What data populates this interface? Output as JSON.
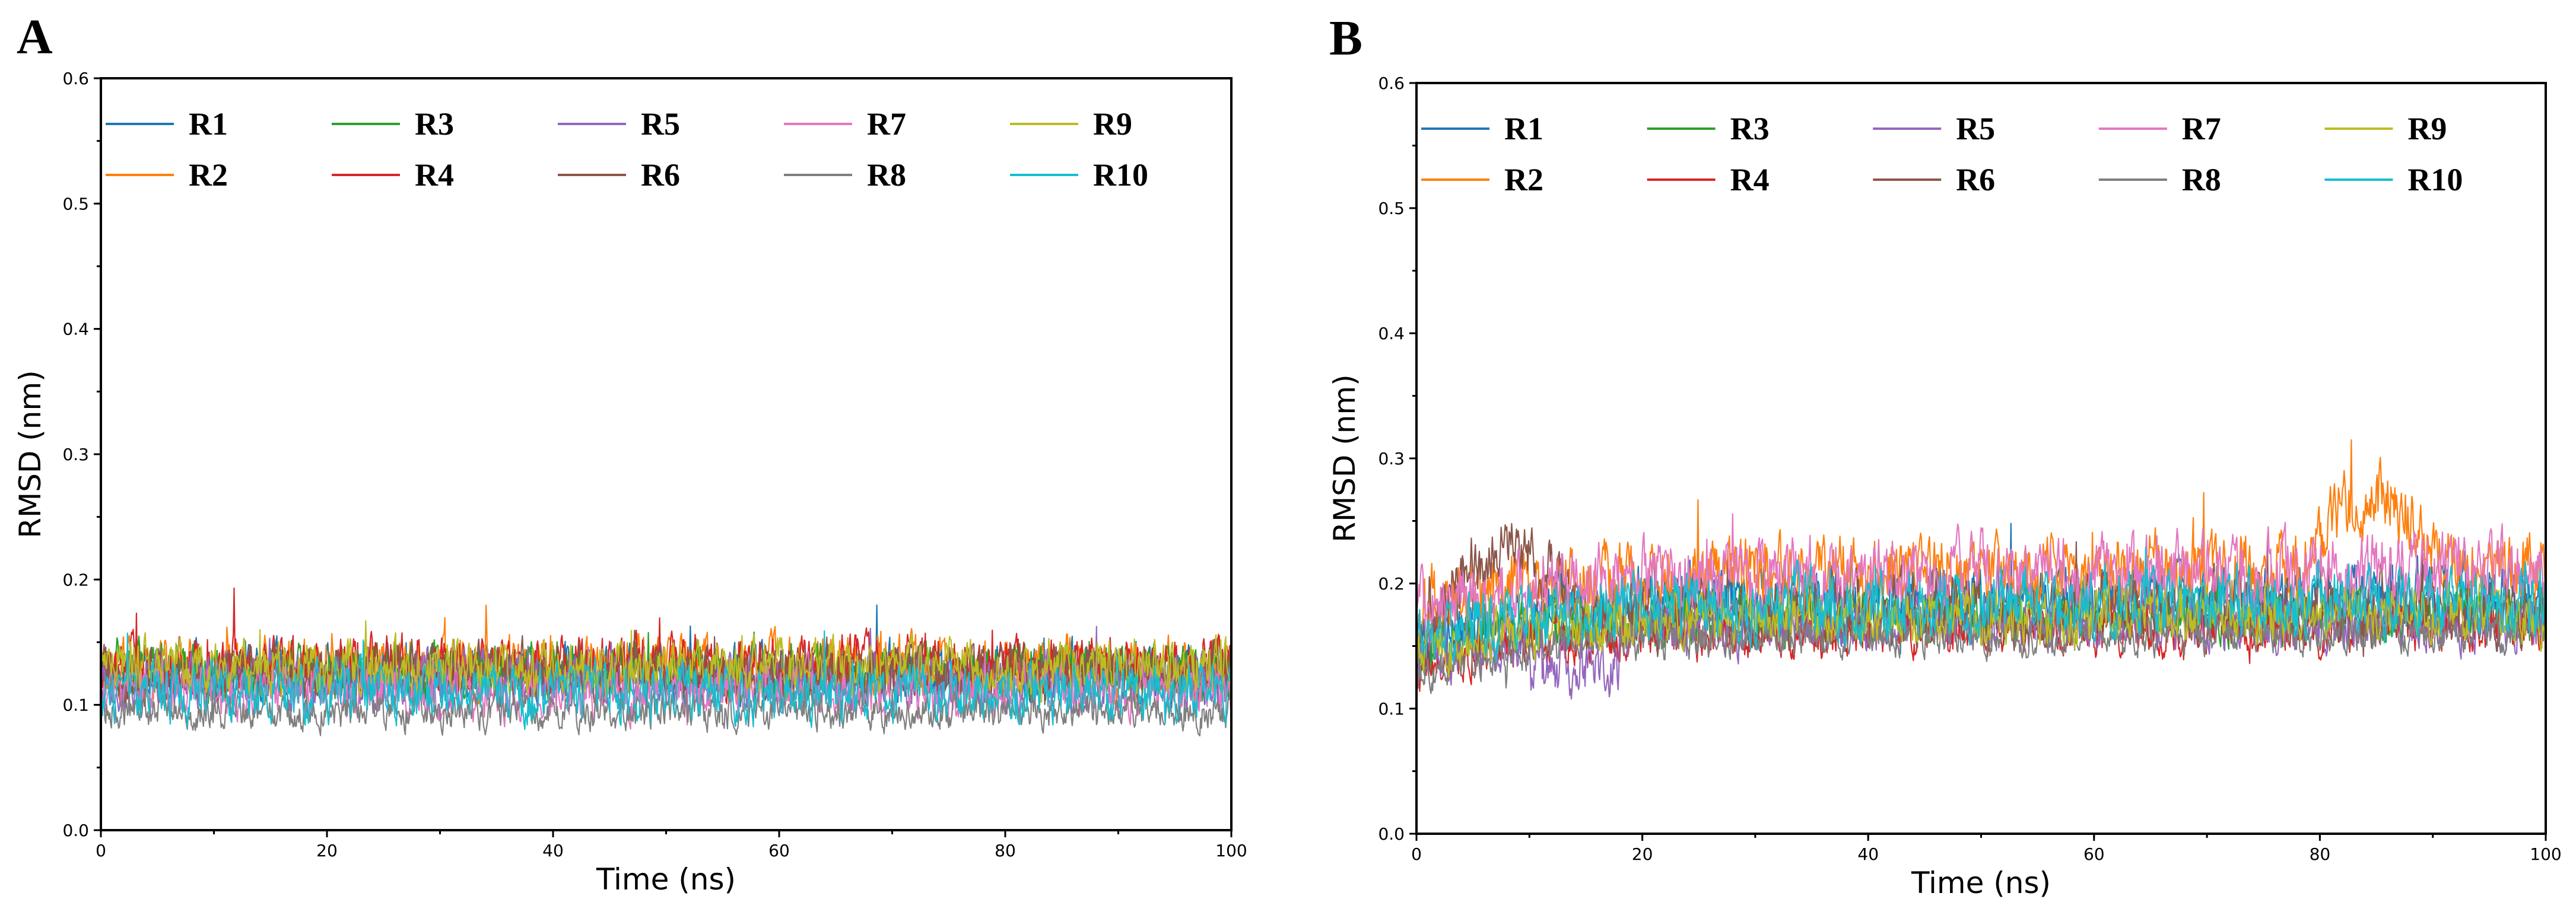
{
  "chart_data": [
    {
      "panel": "A",
      "type": "line",
      "xlabel": "Time (ns)",
      "ylabel": "RMSD (nm)",
      "xlim": [
        0,
        100
      ],
      "ylim": [
        0.0,
        0.6
      ],
      "xticks": [
        "0",
        "20",
        "40",
        "60",
        "80",
        "100"
      ],
      "yticks": [
        "0.0",
        "0.1",
        "0.2",
        "0.3",
        "0.4",
        "0.5",
        "0.6"
      ],
      "legend_position": "top",
      "series": [
        {
          "name": "R1",
          "color": "#1f77b4",
          "mean": 0.125,
          "noise": 0.017
        },
        {
          "name": "R2",
          "color": "#ff7f0e",
          "mean": 0.13,
          "noise": 0.018
        },
        {
          "name": "R3",
          "color": "#2ca02c",
          "mean": 0.128,
          "noise": 0.017
        },
        {
          "name": "R4",
          "color": "#d62728",
          "mean": 0.132,
          "noise": 0.017
        },
        {
          "name": "R5",
          "color": "#9467bd",
          "mean": 0.12,
          "noise": 0.016
        },
        {
          "name": "R6",
          "color": "#8c564b",
          "mean": 0.125,
          "noise": 0.017
        },
        {
          "name": "R7",
          "color": "#e377c2",
          "mean": 0.11,
          "noise": 0.016
        },
        {
          "name": "R8",
          "color": "#7f7f7f",
          "mean": 0.095,
          "noise": 0.011
        },
        {
          "name": "R9",
          "color": "#bcbd22",
          "mean": 0.13,
          "noise": 0.016
        },
        {
          "name": "R10",
          "color": "#17becf",
          "mean": 0.11,
          "noise": 0.017
        }
      ]
    },
    {
      "panel": "B",
      "type": "line",
      "xlabel": "Time (ns)",
      "ylabel": "RMSD (nm)",
      "xlim": [
        0,
        100
      ],
      "ylim": [
        0.0,
        0.6
      ],
      "xticks": [
        "0",
        "20",
        "40",
        "60",
        "80",
        "100"
      ],
      "yticks": [
        "0.0",
        "0.1",
        "0.2",
        "0.3",
        "0.4",
        "0.5",
        "0.6"
      ],
      "legend_position": "top",
      "series": [
        {
          "name": "R1",
          "color": "#1f77b4",
          "mean": 0.19,
          "noise": 0.02
        },
        {
          "name": "R2",
          "color": "#ff7f0e",
          "mean": 0.21,
          "noise": 0.022
        },
        {
          "name": "R3",
          "color": "#2ca02c",
          "mean": 0.175,
          "noise": 0.016
        },
        {
          "name": "R4",
          "color": "#d62728",
          "mean": 0.165,
          "noise": 0.015
        },
        {
          "name": "R5",
          "color": "#9467bd",
          "mean": 0.17,
          "noise": 0.017
        },
        {
          "name": "R6",
          "color": "#8c564b",
          "mean": 0.18,
          "noise": 0.02
        },
        {
          "name": "R7",
          "color": "#e377c2",
          "mean": 0.21,
          "noise": 0.022
        },
        {
          "name": "R8",
          "color": "#7f7f7f",
          "mean": 0.16,
          "noise": 0.012
        },
        {
          "name": "R9",
          "color": "#bcbd22",
          "mean": 0.175,
          "noise": 0.016
        },
        {
          "name": "R10",
          "color": "#17becf",
          "mean": 0.185,
          "noise": 0.02
        }
      ]
    }
  ]
}
